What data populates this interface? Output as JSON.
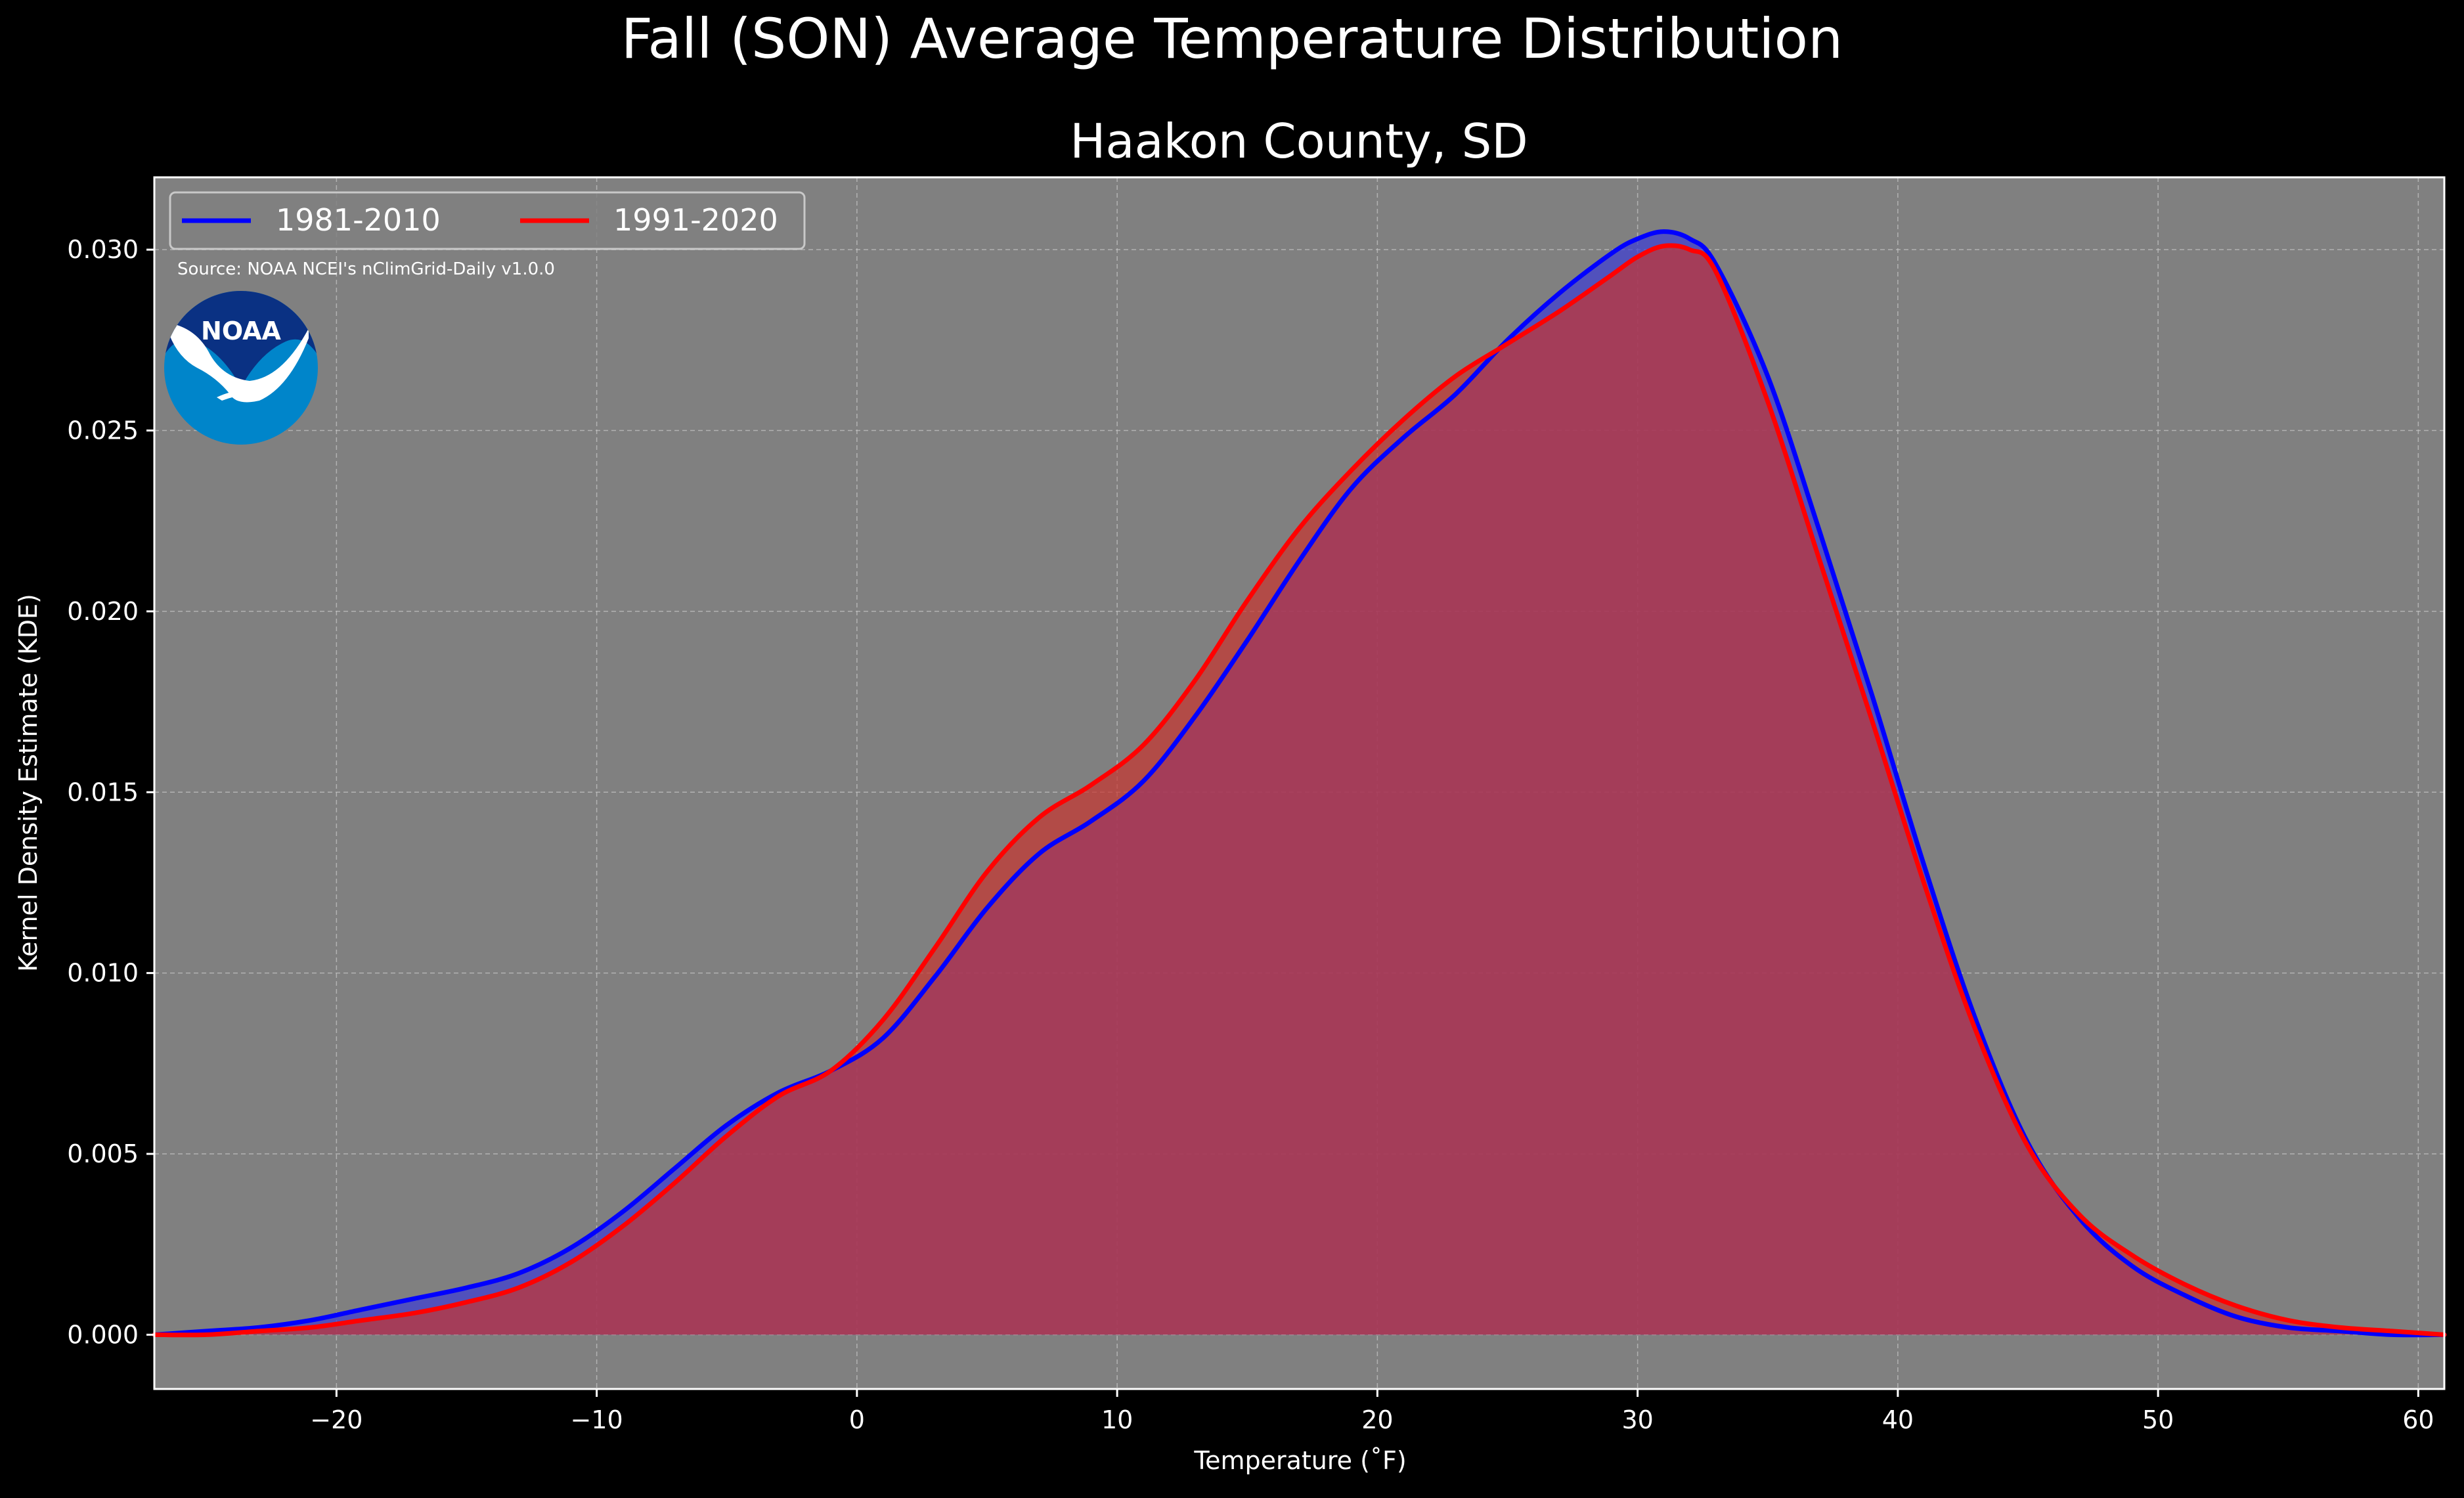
{
  "chart_data": {
    "type": "area",
    "suptitle": "Fall (SON) Average Temperature Distribution",
    "title": "Haakon County, SD",
    "xlabel": "Temperature (˚F)",
    "ylabel": "Kernel Density Estimate (KDE)",
    "xlim": [
      -27,
      61
    ],
    "ylim": [
      -0.0015,
      0.032
    ],
    "x_ticks": [
      -20,
      -10,
      0,
      10,
      20,
      30,
      40,
      50,
      60
    ],
    "x_tick_labels": [
      "−20",
      "−10",
      "0",
      "10",
      "20",
      "30",
      "40",
      "50",
      "60"
    ],
    "y_ticks": [
      0.0,
      0.005,
      0.01,
      0.015,
      0.02,
      0.025,
      0.03
    ],
    "y_tick_labels": [
      "0.000",
      "0.005",
      "0.010",
      "0.015",
      "0.020",
      "0.025",
      "0.030"
    ],
    "grid": true,
    "legend_position": "upper-left",
    "source": "Source: NOAA NCEI's nClimGrid-Daily v1.0.0",
    "logo_text": "NOAA",
    "plot_background": "#808080",
    "series": [
      {
        "name": "1981-2010",
        "color": "#0000ff",
        "fill": "#3d3dd6",
        "x": [
          -27,
          -25,
          -23,
          -21,
          -19,
          -17,
          -15,
          -13,
          -11,
          -9,
          -7,
          -5,
          -3,
          -1,
          1,
          3,
          5,
          7,
          9,
          11,
          13,
          15,
          17,
          19,
          21,
          23,
          25,
          27,
          29,
          30,
          31,
          32,
          33,
          35,
          37,
          39,
          41,
          43,
          45,
          47,
          49,
          51,
          53,
          55,
          57,
          59,
          61
        ],
        "y": [
          0.0,
          0.0001,
          0.0002,
          0.0004,
          0.0007,
          0.001,
          0.0013,
          0.0017,
          0.0024,
          0.0034,
          0.0046,
          0.0058,
          0.0067,
          0.0073,
          0.0082,
          0.0099,
          0.0118,
          0.0133,
          0.0142,
          0.0153,
          0.0171,
          0.0192,
          0.0214,
          0.0234,
          0.0248,
          0.026,
          0.0275,
          0.0288,
          0.0299,
          0.0303,
          0.0305,
          0.0303,
          0.0296,
          0.0265,
          0.0222,
          0.0177,
          0.013,
          0.0087,
          0.0053,
          0.0032,
          0.0019,
          0.0011,
          0.0005,
          0.0002,
          0.0001,
          0.0,
          0.0
        ]
      },
      {
        "name": "1991-2020",
        "color": "#ff0000",
        "fill": "#c8342f",
        "x": [
          -27,
          -25,
          -23,
          -21,
          -19,
          -17,
          -15,
          -13,
          -11,
          -9,
          -7,
          -5,
          -3,
          -1,
          1,
          3,
          5,
          7,
          9,
          11,
          13,
          15,
          17,
          19,
          21,
          23,
          25,
          27,
          29,
          30,
          31,
          32,
          33,
          35,
          37,
          39,
          41,
          43,
          45,
          47,
          49,
          51,
          53,
          55,
          57,
          59,
          61
        ],
        "y": [
          0.0,
          0.0,
          0.0001,
          0.0002,
          0.0004,
          0.0006,
          0.0009,
          0.0013,
          0.002,
          0.003,
          0.0042,
          0.0055,
          0.0066,
          0.0073,
          0.0087,
          0.0107,
          0.0128,
          0.0143,
          0.0152,
          0.0163,
          0.0181,
          0.0203,
          0.0223,
          0.0239,
          0.0253,
          0.0265,
          0.0274,
          0.0283,
          0.0293,
          0.0298,
          0.0301,
          0.03,
          0.0294,
          0.0258,
          0.0214,
          0.017,
          0.0125,
          0.0084,
          0.0052,
          0.0033,
          0.0022,
          0.0014,
          0.0008,
          0.0004,
          0.0002,
          0.0001,
          0.0
        ]
      }
    ]
  }
}
